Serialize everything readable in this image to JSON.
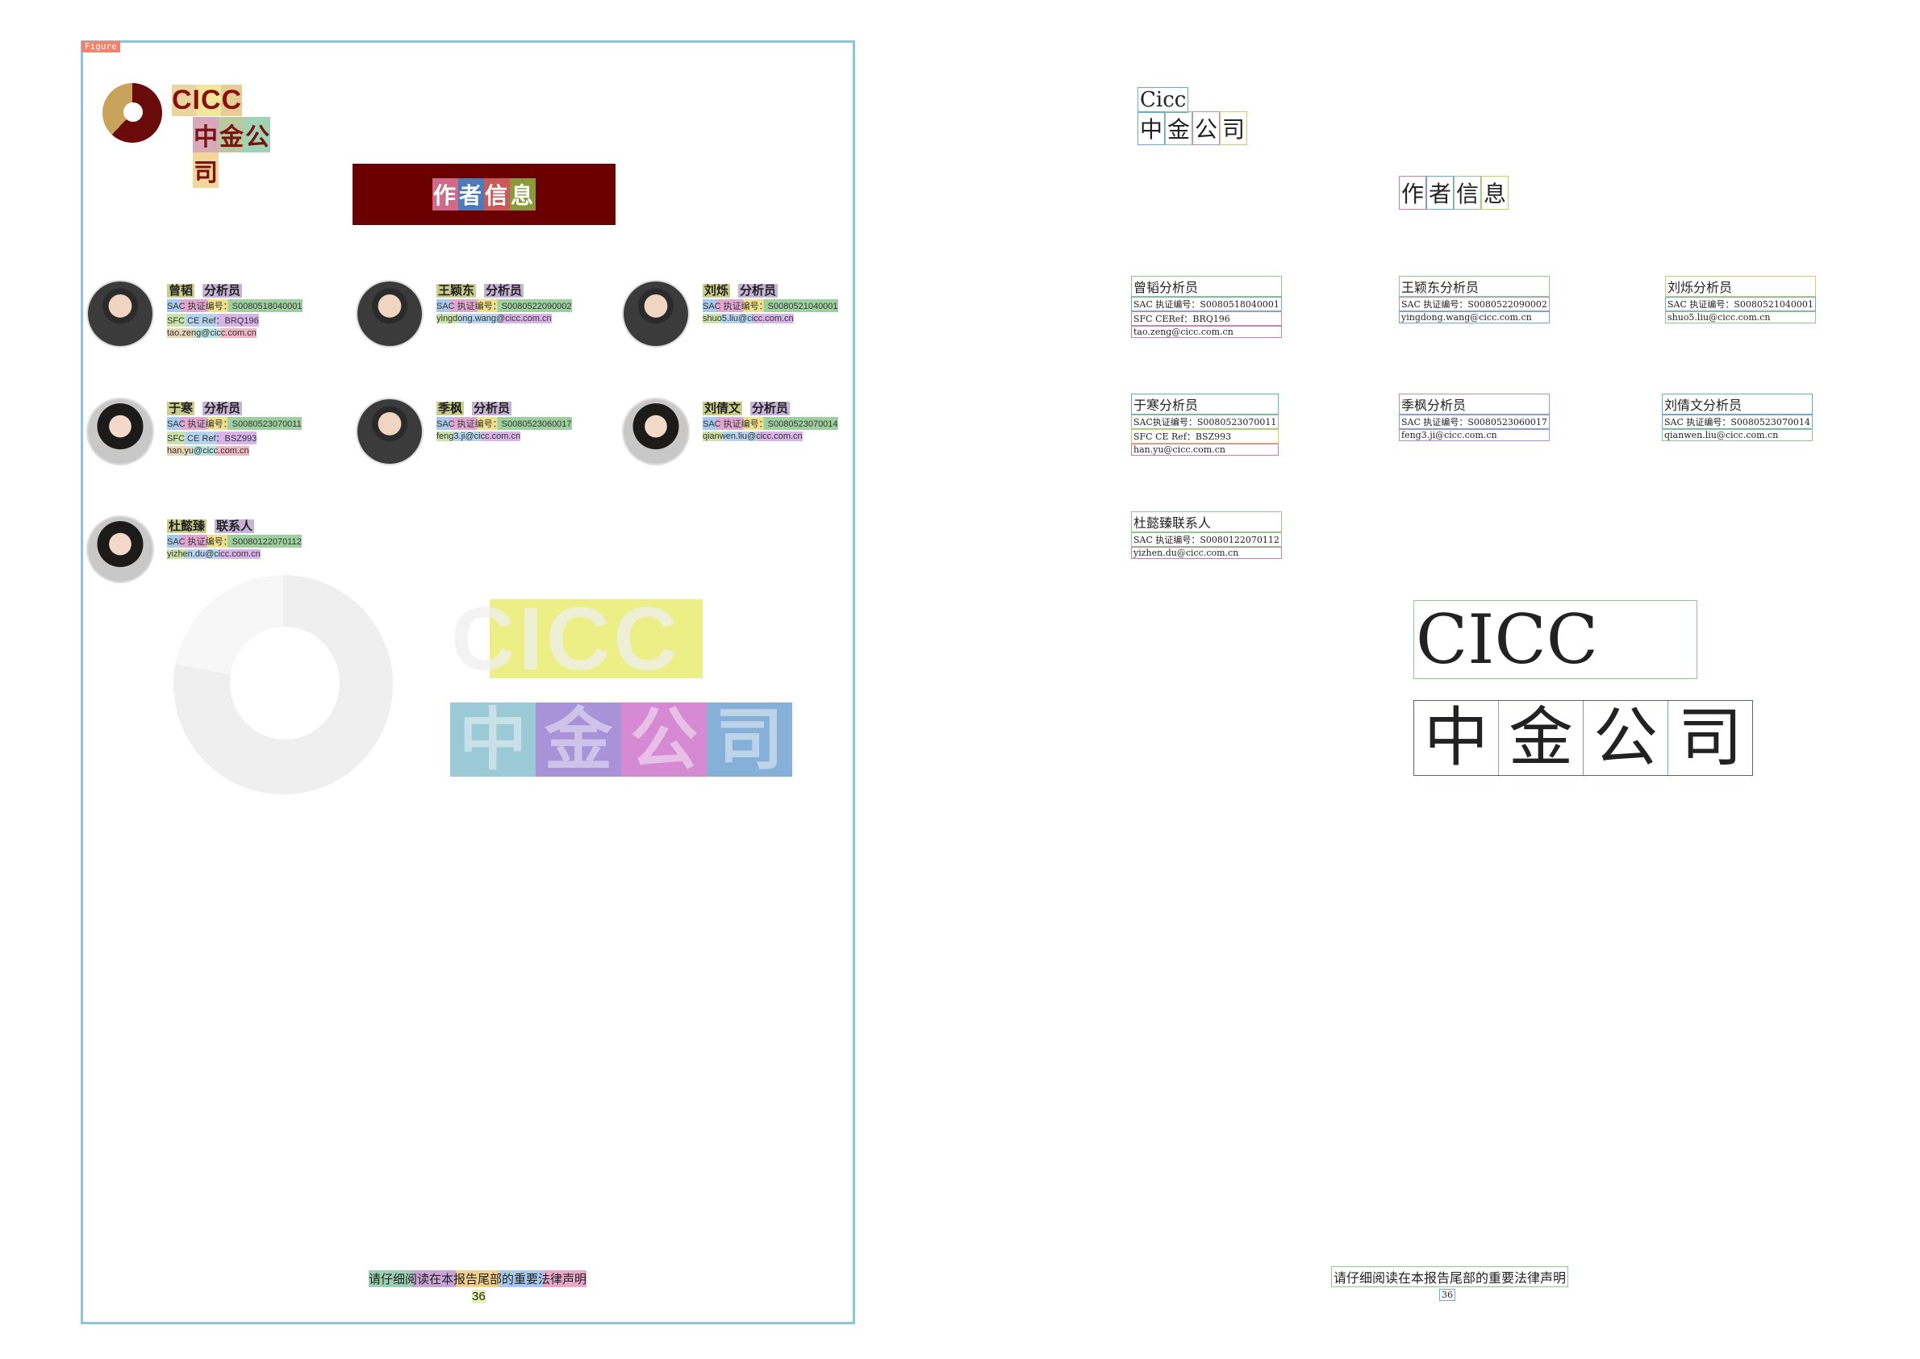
{
  "figure_tag": "Figure",
  "logo": {
    "name_en": "CICC",
    "name_cn": [
      "中",
      "金",
      "公",
      "司"
    ]
  },
  "author_banner": [
    "作",
    "者",
    "信",
    "息"
  ],
  "people": [
    {
      "name": "曾韬",
      "role": "分析员",
      "lines": [
        "SAC 执证编号：S0080518040001",
        "SFC CE Ref：BRQ196",
        "tao.zeng@cicc.com.cn"
      ],
      "gender": "m"
    },
    {
      "name": "王颖东",
      "role": "分析员",
      "lines": [
        "SAC 执证编号：S0080522090002",
        "yingdong.wang@cicc.com.cn",
        ""
      ],
      "gender": "m"
    },
    {
      "name": "刘烁",
      "role": "分析员",
      "lines": [
        "SAC 执证编号：S0080521040001",
        "shuo5.liu@cicc.com.cn",
        ""
      ],
      "gender": "m"
    },
    {
      "name": "于寒",
      "role": "分析员",
      "lines": [
        "SAC 执证编号：S0080523070011",
        "SFC CE Ref：BSZ993",
        "han.yu@cicc.com.cn"
      ],
      "gender": "f"
    },
    {
      "name": "季枫",
      "role": "分析员",
      "lines": [
        "SAC 执证编号：S0080523060017",
        "feng3.ji@cicc.com.cn",
        ""
      ],
      "gender": "m"
    },
    {
      "name": "刘倩文",
      "role": "分析员",
      "lines": [
        "SAC 执证编号：S0080523070014",
        "qianwen.liu@cicc.com.cn",
        ""
      ],
      "gender": "f"
    },
    {
      "name": "杜懿臻",
      "role": "联系人",
      "lines": [
        "SAC 执证编号：S0080122070112",
        "yizhen.du@cicc.com.cn",
        ""
      ],
      "gender": "f"
    }
  ],
  "watermark": {
    "name_en": "CICC",
    "name_cn": [
      "中",
      "金",
      "公",
      "司"
    ]
  },
  "footer": {
    "notice": "请仔细阅读在本报告尾部的重要法律声明",
    "page_number": "36"
  },
  "ocr": {
    "logo_en": "Cicc",
    "logo_cn": [
      "中",
      "金",
      "公",
      "司"
    ],
    "banner": [
      "作",
      "者",
      "信",
      "息"
    ],
    "people": [
      {
        "head": "曾韬分析员",
        "lines": [
          "SAC 执证编号：S0080518040001",
          "SFC CERef：BRQ196",
          "tao.zeng@cicc.com.cn"
        ]
      },
      {
        "head": "王颖东分析员",
        "lines": [
          "SAC 执证编号：S0080522090002",
          "yingdong.wang@cicc.com.cn",
          ""
        ]
      },
      {
        "head": "刘烁分析员",
        "lines": [
          "SAC 执证编号：S0080521040001",
          "shuo5.liu@cicc.com.cn",
          ""
        ]
      },
      {
        "head": "于寒分析员",
        "lines": [
          "SAC执证编号：S0080523070011",
          "SFC CE Ref：BSZ993",
          "han.yu@cicc.com.cn"
        ]
      },
      {
        "head": "季枫分析员",
        "lines": [
          "SAC 执证编号：S0080523060017",
          "feng3.ji@cicc.com.cn",
          ""
        ]
      },
      {
        "head": "刘倩文分析员",
        "lines": [
          "SAC 执证编号：S0080523070014",
          "qianwen.liu@cicc.com.cn",
          ""
        ]
      },
      {
        "head": "杜懿臻联系人",
        "lines": [
          "SAC 执证编号：S0080122070112",
          "yizhen.du@cicc.com.cn",
          ""
        ]
      }
    ],
    "wm_en": "CICC",
    "wm_cn": [
      "中",
      "金",
      "公",
      "司"
    ],
    "footer_notice": "请仔细阅读在本报告尾部的重要法律声明",
    "footer_page": "36"
  }
}
